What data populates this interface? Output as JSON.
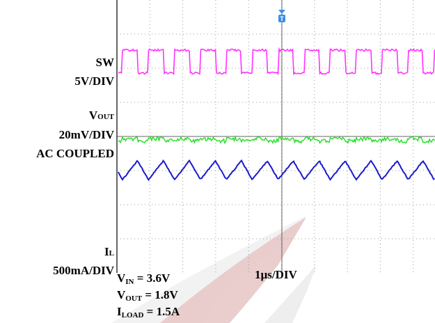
{
  "channels": {
    "sw": {
      "name": "SW",
      "scale": "5V/DIV"
    },
    "vout": {
      "name": {
        "main": "V",
        "sub": "OUT"
      },
      "scale": "20mV/DIV",
      "coupling": "AC COUPLED"
    },
    "il": {
      "name": {
        "main": "I",
        "sub": "L"
      },
      "scale": "500mA/DIV"
    }
  },
  "timebase": "1µs/DIV",
  "conditions": [
    {
      "main": "V",
      "sub": "IN",
      "rest": " = 3.6V"
    },
    {
      "main": "V",
      "sub": "OUT",
      "rest": " = 1.8V"
    },
    {
      "main": "I",
      "sub": "LOAD",
      "rest": " = 1.5A"
    }
  ]
}
